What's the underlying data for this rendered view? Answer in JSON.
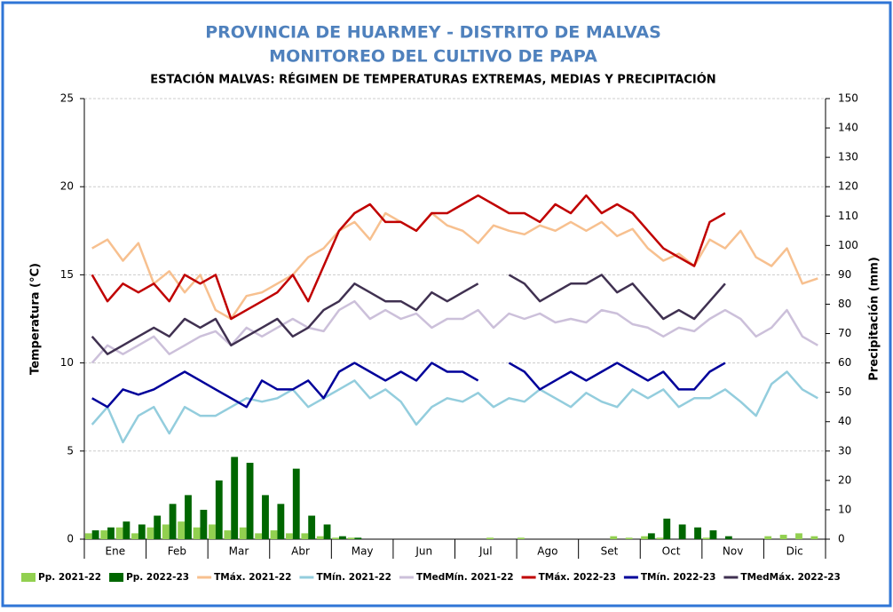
{
  "chart_data": {
    "type": "combo",
    "title": "PROVINCIA DE HUARMEY - DISTRITO DE MALVAS",
    "subtitle": "MONITOREO DEL CULTIVO DE PAPA",
    "chart_title": "ESTACIÓN MALVAS: RÉGIMEN DE TEMPERATURAS EXTREMAS, MEDIAS Y PRECIPITACIÓN",
    "y_label": "Temperatura (°C)",
    "y2_label": "Precipitación (mm)",
    "categories": [
      "Ene",
      null,
      null,
      null,
      "Feb",
      null,
      null,
      null,
      "Mar",
      null,
      null,
      null,
      "Abr",
      null,
      null,
      null,
      "May",
      null,
      null,
      null,
      "Jun",
      null,
      null,
      null,
      "Jul",
      null,
      null,
      null,
      "Ago",
      null,
      null,
      null,
      "Set",
      null,
      null,
      null,
      "Oct",
      null,
      null,
      null,
      "Nov",
      null,
      null,
      null,
      "Dic",
      null,
      null,
      null
    ],
    "ylim": [
      0,
      25
    ],
    "yticks": [
      0,
      5,
      10,
      15,
      20,
      25
    ],
    "y2lim": [
      0,
      150
    ],
    "y2ticks": [
      0,
      10,
      20,
      30,
      40,
      50,
      60,
      70,
      80,
      90,
      100,
      110,
      120,
      130,
      140,
      150
    ],
    "grid": true,
    "series": [
      {
        "name": "Pp. 2021-22",
        "type": "bar",
        "axis": "y2",
        "color": "#92d050",
        "values": [
          2,
          3,
          4,
          2,
          4,
          5,
          6,
          4,
          5,
          3,
          4,
          2,
          3,
          2,
          2,
          1,
          0.5,
          0.5,
          0,
          0,
          0,
          0,
          0,
          0,
          0,
          0,
          0.5,
          0,
          0.5,
          0,
          0,
          0,
          0,
          0,
          1,
          0.5,
          1,
          0.5,
          0,
          0,
          0.5,
          0,
          0,
          0,
          1,
          1.5,
          2,
          1
        ]
      },
      {
        "name": "Pp. 2022-23",
        "type": "bar",
        "axis": "y2",
        "color": "#006600",
        "values": [
          3,
          4,
          6,
          5,
          8,
          12,
          15,
          10,
          20,
          28,
          26,
          15,
          12,
          24,
          8,
          5,
          1,
          0.5,
          0,
          0,
          0,
          0,
          0,
          0,
          0,
          0,
          0,
          0,
          0,
          0,
          0,
          0,
          0,
          0,
          0,
          0,
          2,
          7,
          5,
          4,
          3,
          1,
          0,
          0,
          0,
          0,
          0,
          0
        ]
      },
      {
        "name": "TMáx. 2021-22",
        "type": "line",
        "color": "#f7c08f",
        "values": [
          16.5,
          17,
          15.8,
          16.8,
          14.5,
          15.2,
          14,
          15,
          13,
          12.5,
          13.8,
          14,
          14.5,
          15,
          16,
          16.5,
          17.5,
          18,
          17,
          18.5,
          18,
          17.5,
          18.5,
          17.8,
          17.5,
          16.8,
          17.8,
          17.5,
          17.3,
          17.8,
          17.5,
          18,
          17.5,
          18,
          17.2,
          17.6,
          16.5,
          15.8,
          16.2,
          15.5,
          17,
          16.5,
          17.5,
          16,
          15.5,
          16.5,
          14.5,
          14.8
        ]
      },
      {
        "name": "TMín. 2021-22",
        "type": "line",
        "color": "#93cddd",
        "values": [
          6.5,
          7.5,
          5.5,
          7,
          7.5,
          6,
          7.5,
          7,
          7,
          7.5,
          8,
          7.8,
          8,
          8.5,
          7.5,
          8,
          8.5,
          9,
          8,
          8.5,
          7.8,
          6.5,
          7.5,
          8,
          7.8,
          8.3,
          7.5,
          8,
          7.8,
          8.5,
          8,
          7.5,
          8.3,
          7.8,
          7.5,
          8.5,
          8,
          8.5,
          7.5,
          8,
          8,
          8.5,
          7.8,
          7,
          8.8,
          9.5,
          8.5,
          8
        ]
      },
      {
        "name": "TMedMín. 2021-22",
        "type": "line",
        "color": "#ccc0da",
        "values": [
          10,
          11,
          10.5,
          11,
          11.5,
          10.5,
          11,
          11.5,
          11.8,
          11,
          12,
          11.5,
          12,
          12.5,
          12,
          11.8,
          13,
          13.5,
          12.5,
          13,
          12.5,
          12.8,
          12,
          12.5,
          12.5,
          13,
          12,
          12.8,
          12.5,
          12.8,
          12.3,
          12.5,
          12.3,
          13,
          12.8,
          12.2,
          12,
          11.5,
          12,
          11.8,
          12.5,
          13,
          12.5,
          11.5,
          12,
          13,
          11.5,
          11
        ]
      },
      {
        "name": "TMáx. 2022-23",
        "type": "line",
        "color": "#c00000",
        "values": [
          15,
          13.5,
          14.5,
          14,
          14.5,
          13.5,
          15,
          14.5,
          15,
          12.5,
          13,
          13.5,
          14,
          15,
          13.5,
          15.5,
          17.5,
          18.5,
          19,
          18,
          18,
          17.5,
          18.5,
          18.5,
          19,
          19.5,
          19,
          18.5,
          18.5,
          18,
          19,
          18.5,
          19.5,
          18.5,
          19,
          18.5,
          17.5,
          16.5,
          16,
          15.5,
          18,
          18.5,
          null,
          null,
          null,
          null,
          null,
          null
        ]
      },
      {
        "name": "TMín. 2022-23",
        "type": "line",
        "color": "#00009a",
        "values": [
          8,
          7.5,
          8.5,
          8.2,
          8.5,
          9,
          9.5,
          9,
          8.5,
          8,
          7.5,
          9,
          8.5,
          8.5,
          9,
          8,
          9.5,
          10,
          9.5,
          9,
          9.5,
          9,
          10,
          9.5,
          9.5,
          9,
          null,
          10,
          9.5,
          8.5,
          9,
          9.5,
          9,
          9.5,
          10,
          9.5,
          9,
          9.5,
          8.5,
          8.5,
          9.5,
          10,
          null,
          null,
          null,
          null,
          null,
          null
        ]
      },
      {
        "name": "TMedMáx. 2022-23",
        "type": "line",
        "color": "#403151",
        "values": [
          11.5,
          10.5,
          11,
          11.5,
          12,
          11.5,
          12.5,
          12,
          12.5,
          11,
          11.5,
          12,
          12.5,
          11.5,
          12,
          13,
          13.5,
          14.5,
          14,
          13.5,
          13.5,
          13,
          14,
          13.5,
          14,
          14.5,
          null,
          15,
          14.5,
          13.5,
          14,
          14.5,
          14.5,
          15,
          14,
          14.5,
          13.5,
          12.5,
          13,
          12.5,
          13.5,
          14.5,
          null,
          null,
          null,
          null,
          null,
          null
        ]
      }
    ]
  }
}
